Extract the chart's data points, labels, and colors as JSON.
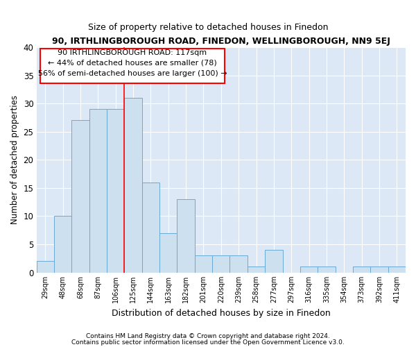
{
  "title": "90, IRTHLINGBOROUGH ROAD, FINEDON, WELLINGBOROUGH, NN9 5EJ",
  "subtitle": "Size of property relative to detached houses in Finedon",
  "xlabel": "Distribution of detached houses by size in Finedon",
  "ylabel": "Number of detached properties",
  "categories": [
    "29sqm",
    "48sqm",
    "68sqm",
    "87sqm",
    "106sqm",
    "125sqm",
    "144sqm",
    "163sqm",
    "182sqm",
    "201sqm",
    "220sqm",
    "239sqm",
    "258sqm",
    "277sqm",
    "297sqm",
    "316sqm",
    "335sqm",
    "354sqm",
    "373sqm",
    "392sqm",
    "411sqm"
  ],
  "values": [
    2,
    10,
    27,
    29,
    29,
    31,
    16,
    7,
    13,
    3,
    3,
    3,
    1,
    4,
    0,
    1,
    1,
    0,
    1,
    1,
    1
  ],
  "bar_color": "#cce0f0",
  "bar_edge_color": "#6aaad4",
  "background_color": "#dce8f5",
  "ylim": [
    0,
    40
  ],
  "yticks": [
    0,
    5,
    10,
    15,
    20,
    25,
    30,
    35,
    40
  ],
  "red_line_index": 5,
  "annotation_line1": "90 IRTHLINGBOROUGH ROAD: 117sqm",
  "annotation_line2": "← 44% of detached houses are smaller (78)",
  "annotation_line3": "56% of semi-detached houses are larger (100) →",
  "footer_line1": "Contains HM Land Registry data © Crown copyright and database right 2024.",
  "footer_line2": "Contains public sector information licensed under the Open Government Licence v3.0."
}
